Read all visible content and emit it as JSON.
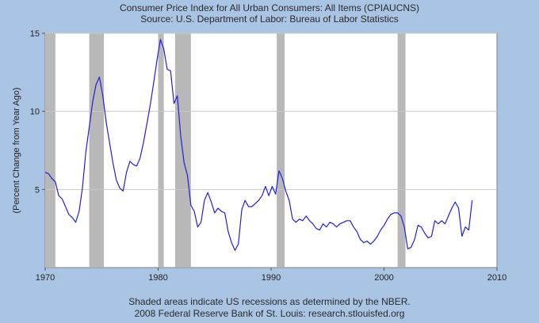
{
  "header": {
    "title": "Consumer Price Index for All Urban Consumers: All Items (CPIAUCNS)",
    "subtitle": "Source: U.S. Department of Labor: Bureau of Labor Statistics"
  },
  "footer": {
    "note": "Shaded areas indicate US recessions as determined by the NBER.",
    "credit": "2008 Federal Reserve Bank of St. Louis: research.stlouisfed.org"
  },
  "colors": {
    "background": "#a9c5e3",
    "plot": "#ffffff",
    "line": "#2020d8",
    "recession": "#b8b8b8",
    "grid": "#c8c8c8"
  },
  "chart_data": {
    "type": "line",
    "title": "Consumer Price Index for All Urban Consumers: All Items (CPIAUCNS)",
    "subtitle": "Source: U.S. Department of Labor: Bureau of Labor Statistics",
    "xlabel": "",
    "ylabel": "(Percent Change from Year Ago)",
    "xlim": [
      1970,
      2010
    ],
    "ylim": [
      0,
      15
    ],
    "x_ticks": [
      1970,
      1980,
      1990,
      2000,
      2010
    ],
    "y_ticks": [
      5,
      10,
      15
    ],
    "y_gridlines": [
      5,
      10,
      15
    ],
    "recessions": [
      [
        1970.0,
        1970.9
      ],
      [
        1973.9,
        1975.2
      ],
      [
        1980.0,
        1980.5
      ],
      [
        1981.5,
        1982.9
      ],
      [
        1990.5,
        1991.2
      ],
      [
        2001.2,
        2001.9
      ]
    ],
    "series": [
      {
        "name": "CPIAUCNS",
        "x": [
          1970.0,
          1970.3,
          1970.6,
          1970.9,
          1971.2,
          1971.5,
          1971.8,
          1972.1,
          1972.4,
          1972.7,
          1973.0,
          1973.3,
          1973.6,
          1973.9,
          1974.2,
          1974.5,
          1974.8,
          1975.1,
          1975.4,
          1975.7,
          1976.0,
          1976.3,
          1976.6,
          1976.9,
          1977.2,
          1977.5,
          1977.8,
          1978.1,
          1978.4,
          1978.7,
          1979.0,
          1979.3,
          1979.6,
          1979.9,
          1980.2,
          1980.5,
          1980.8,
          1981.1,
          1981.4,
          1981.7,
          1982.0,
          1982.3,
          1982.6,
          1982.9,
          1983.2,
          1983.5,
          1983.8,
          1984.1,
          1984.4,
          1984.7,
          1985.0,
          1985.3,
          1985.6,
          1985.9,
          1986.2,
          1986.5,
          1986.8,
          1987.1,
          1987.4,
          1987.7,
          1988.0,
          1988.3,
          1988.6,
          1988.9,
          1989.2,
          1989.5,
          1989.8,
          1990.1,
          1990.4,
          1990.7,
          1991.0,
          1991.3,
          1991.6,
          1991.9,
          1992.2,
          1992.5,
          1992.8,
          1993.1,
          1993.4,
          1993.7,
          1994.0,
          1994.3,
          1994.6,
          1994.9,
          1995.2,
          1995.5,
          1995.8,
          1996.1,
          1996.4,
          1996.7,
          1997.0,
          1997.3,
          1997.6,
          1997.9,
          1998.2,
          1998.5,
          1998.8,
          1999.1,
          1999.4,
          1999.7,
          2000.0,
          2000.3,
          2000.6,
          2000.9,
          2001.2,
          2001.5,
          2001.8,
          2002.1,
          2002.4,
          2002.7,
          2003.0,
          2003.3,
          2003.6,
          2003.9,
          2004.2,
          2004.5,
          2004.8,
          2005.1,
          2005.4,
          2005.7,
          2006.0,
          2006.3,
          2006.6,
          2006.9,
          2007.2,
          2007.5,
          2007.8
        ],
        "values": [
          6.1,
          6.0,
          5.7,
          5.5,
          4.6,
          4.4,
          3.9,
          3.4,
          3.2,
          2.9,
          3.6,
          5.1,
          7.4,
          9.0,
          10.6,
          11.7,
          12.2,
          11.0,
          9.3,
          8.0,
          6.7,
          5.6,
          5.1,
          4.9,
          6.1,
          6.8,
          6.6,
          6.5,
          7.0,
          8.0,
          9.2,
          10.4,
          11.8,
          13.3,
          14.6,
          14.0,
          12.7,
          12.6,
          10.5,
          11.0,
          8.4,
          6.7,
          5.9,
          4.0,
          3.6,
          2.6,
          2.9,
          4.3,
          4.8,
          4.2,
          3.5,
          3.8,
          3.6,
          3.5,
          2.3,
          1.6,
          1.1,
          1.5,
          3.7,
          4.3,
          3.9,
          3.9,
          4.1,
          4.3,
          4.6,
          5.2,
          4.6,
          5.2,
          4.7,
          6.2,
          5.7,
          4.9,
          4.3,
          3.1,
          2.9,
          3.1,
          3.0,
          3.3,
          3.0,
          2.8,
          2.5,
          2.4,
          2.8,
          2.6,
          2.9,
          2.8,
          2.6,
          2.8,
          2.9,
          3.0,
          3.0,
          2.6,
          2.3,
          1.8,
          1.6,
          1.7,
          1.5,
          1.7,
          2.0,
          2.4,
          2.7,
          3.1,
          3.4,
          3.5,
          3.5,
          3.3,
          2.6,
          1.2,
          1.3,
          1.8,
          2.7,
          2.6,
          2.2,
          1.9,
          2.0,
          3.0,
          2.8,
          3.0,
          2.8,
          3.3,
          3.8,
          4.2,
          3.8,
          2.0,
          2.6,
          2.4,
          4.3
        ]
      }
    ]
  }
}
